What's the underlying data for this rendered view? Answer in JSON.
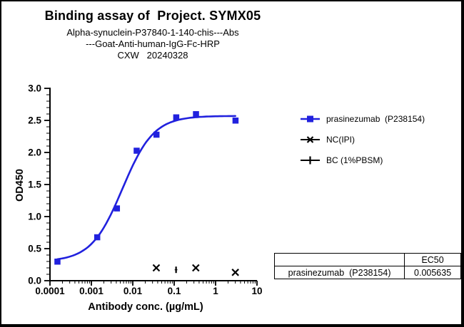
{
  "header": {
    "title": "Binding assay of  Project. SYMX05",
    "subtitle1": "Alpha-synuclein-P37840-1-140-chis---Abs",
    "subtitle2": "---Goat-Anti-human-IgG-Fc-HRP",
    "subtitle3": "CXW   20240328"
  },
  "chart_data": {
    "type": "scatter",
    "title": "Binding assay of Project. SYMX05",
    "xlabel": "Antibody conc. (µg/mL)",
    "ylabel": "OD450",
    "x_scale": "log",
    "xlim": [
      0.0001,
      10
    ],
    "ylim": [
      0.0,
      3.0
    ],
    "x_tick_labels": [
      "0.0001",
      "0.001",
      "0.01",
      "0.1",
      "1",
      "10"
    ],
    "y_tick_labels": [
      "0.0",
      "0.5",
      "1.0",
      "1.5",
      "2.0",
      "2.5",
      "3.0"
    ],
    "y_major_step": 0.5,
    "y_minor_step": 0.1,
    "grid": false,
    "legend_position": "right",
    "series": [
      {
        "name": "prasinezumab  (P238154)",
        "marker": "square",
        "color": "#2121de",
        "x": [
          0.00015,
          0.00137,
          0.0041,
          0.0123,
          0.037,
          0.111,
          0.333,
          3.0
        ],
        "y": [
          0.3,
          0.68,
          1.13,
          2.03,
          2.28,
          2.55,
          2.6,
          2.5
        ],
        "fit": {
          "type": "4PL",
          "bottom": 0.3,
          "top": 2.57,
          "ec50": 0.005635,
          "hill": 1.15
        }
      },
      {
        "name": "NC(IPI)",
        "marker": "x",
        "color": "#000000",
        "x": [
          0.037,
          0.333,
          3.0
        ],
        "y": [
          0.2,
          0.2,
          0.13
        ]
      },
      {
        "name": "BC (1%PBSM)",
        "marker": "plus",
        "color": "#000000",
        "x": [
          0.111
        ],
        "y": [
          0.17
        ]
      }
    ]
  },
  "legend": {
    "items": [
      {
        "label": "prasinezumab  (P238154)",
        "marker": "square-marker-icon",
        "color": "#2121de"
      },
      {
        "label": "NC(IPI)",
        "marker": "x-marker-icon",
        "color": "#000000"
      },
      {
        "label": "BC (1%PBSM)",
        "marker": "plus-marker-icon",
        "color": "#000000"
      }
    ]
  },
  "table": {
    "headers": [
      "",
      "EC50"
    ],
    "rows": [
      [
        "prasinezumab  (P238154)",
        "0.005635"
      ]
    ]
  }
}
